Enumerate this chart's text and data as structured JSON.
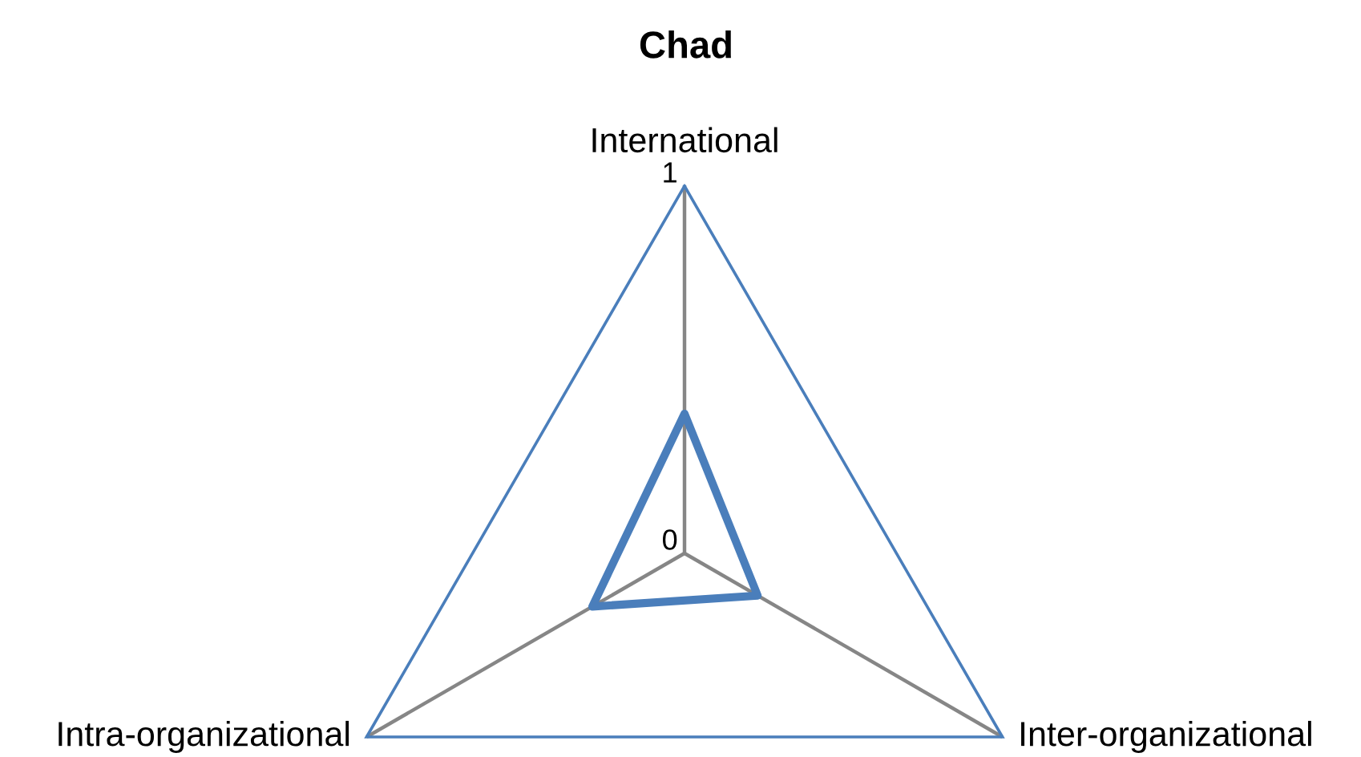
{
  "chart_data": {
    "type": "radar",
    "title": "Chad",
    "categories": [
      "International",
      "Inter-organizational",
      "Intra-organizational"
    ],
    "series": [
      {
        "color": "#4a7ebb",
        "values": [
          0.38,
          0.23,
          0.29
        ]
      }
    ],
    "ylim": [
      0,
      1
    ],
    "yticks": [
      0,
      1
    ],
    "grid": true,
    "marker": "none",
    "line_style": "solid"
  }
}
